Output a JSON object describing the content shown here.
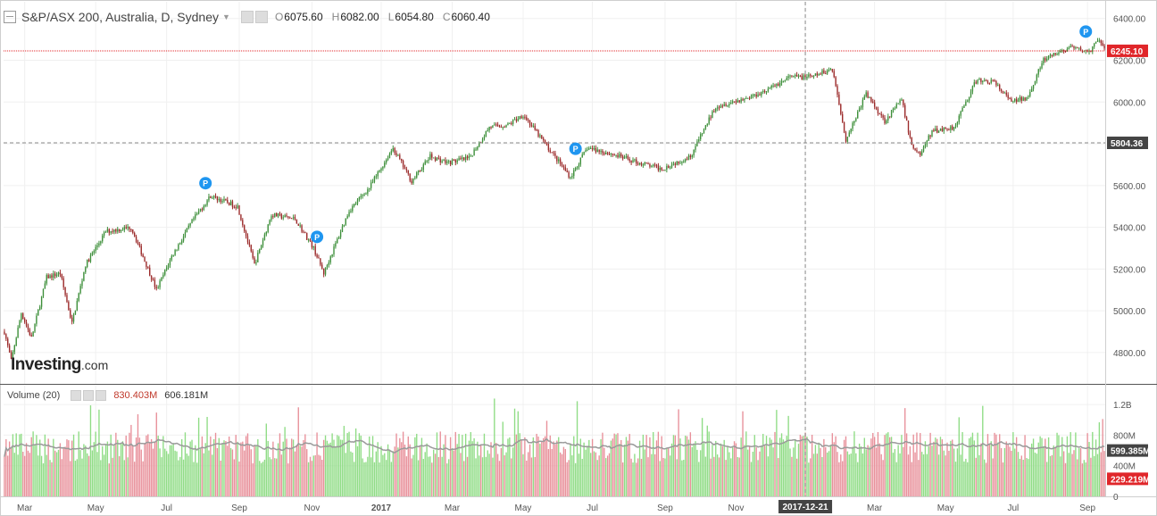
{
  "header": {
    "symbol": "S&P/ASX 200, Australia, D, Sydney",
    "open_label": "O",
    "open": "6075.60",
    "high_label": "H",
    "high": "6082.00",
    "low_label": "L",
    "low": "6054.80",
    "close_label": "C",
    "close": "6060.40"
  },
  "volume_header": {
    "title": "Volume (20)",
    "value": "830.403M",
    "average": "606.181M"
  },
  "logo": {
    "brand": "Investing",
    "suffix": ".com"
  },
  "chart_data": {
    "type": "candlestick",
    "price_axis": {
      "ticks": [
        4800,
        5000,
        5200,
        5400,
        5600,
        5800,
        6000,
        6200,
        6400
      ],
      "range": [
        4650,
        6480
      ]
    },
    "price_labels": {
      "last": "6245.10",
      "crosshair": "5804.36"
    },
    "crosshair_price": 5804.36,
    "last_price": 6245.1,
    "volume_axis": {
      "ticks": [
        "0",
        "400M",
        "800M",
        "1.2B"
      ],
      "values": [
        0,
        400,
        800,
        1200
      ],
      "range": [
        0,
        1400
      ]
    },
    "volume_labels": {
      "average": "599.385M",
      "last": "229.219M"
    },
    "volume_average_value": 599.385,
    "volume_last_value": 229.219,
    "x_ticks": [
      "Mar",
      "May",
      "Jul",
      "Sep",
      "Nov",
      "2017",
      "Mar",
      "May",
      "Jul",
      "Sep",
      "Nov",
      "2017-12-21",
      "Mar",
      "May",
      "Jul",
      "Sep"
    ],
    "x_tick_index": [
      12,
      54,
      96,
      139,
      182,
      223,
      265,
      307,
      348,
      391,
      433,
      474,
      515,
      557,
      597,
      641
    ],
    "crosshair_index": 474,
    "crosshair_label": "2017-12-21",
    "markers": [
      {
        "label": "P",
        "index": 119
      },
      {
        "label": "P",
        "index": 185
      },
      {
        "label": "P",
        "index": 338
      },
      {
        "label": "P",
        "index": 640
      }
    ],
    "price_path": [
      [
        0,
        4900
      ],
      [
        4,
        4760
      ],
      [
        10,
        4990
      ],
      [
        16,
        4870
      ],
      [
        25,
        5160
      ],
      [
        33,
        5180
      ],
      [
        40,
        4940
      ],
      [
        48,
        5220
      ],
      [
        60,
        5380
      ],
      [
        75,
        5400
      ],
      [
        90,
        5100
      ],
      [
        99,
        5260
      ],
      [
        112,
        5440
      ],
      [
        122,
        5550
      ],
      [
        138,
        5500
      ],
      [
        148,
        5220
      ],
      [
        158,
        5460
      ],
      [
        172,
        5440
      ],
      [
        183,
        5300
      ],
      [
        189,
        5180
      ],
      [
        204,
        5480
      ],
      [
        216,
        5590
      ],
      [
        230,
        5780
      ],
      [
        241,
        5620
      ],
      [
        252,
        5740
      ],
      [
        262,
        5710
      ],
      [
        275,
        5730
      ],
      [
        287,
        5880
      ],
      [
        298,
        5890
      ],
      [
        307,
        5940
      ],
      [
        320,
        5800
      ],
      [
        335,
        5640
      ],
      [
        345,
        5780
      ],
      [
        360,
        5750
      ],
      [
        375,
        5710
      ],
      [
        389,
        5680
      ],
      [
        406,
        5740
      ],
      [
        421,
        5980
      ],
      [
        440,
        6020
      ],
      [
        452,
        6060
      ],
      [
        465,
        6120
      ],
      [
        478,
        6120
      ],
      [
        490,
        6160
      ],
      [
        498,
        5820
      ],
      [
        510,
        6040
      ],
      [
        521,
        5910
      ],
      [
        531,
        6010
      ],
      [
        537,
        5790
      ],
      [
        542,
        5750
      ],
      [
        549,
        5860
      ],
      [
        562,
        5880
      ],
      [
        575,
        6100
      ],
      [
        585,
        6100
      ],
      [
        596,
        6000
      ],
      [
        605,
        6020
      ],
      [
        615,
        6200
      ],
      [
        630,
        6260
      ],
      [
        642,
        6240
      ],
      [
        648,
        6300
      ],
      [
        651,
        6245
      ]
    ],
    "n_candles": 652
  },
  "colors": {
    "up": "#3d8f3a",
    "down": "#9b2a2a",
    "vol_up": "#8fdc85",
    "vol_down": "#e8909a",
    "last_price": "#e0262a",
    "crosshair_label": "#444444",
    "marker": "#1f96f0",
    "avg_line": "#9a9a9a",
    "grid": "#f0f0f0"
  }
}
